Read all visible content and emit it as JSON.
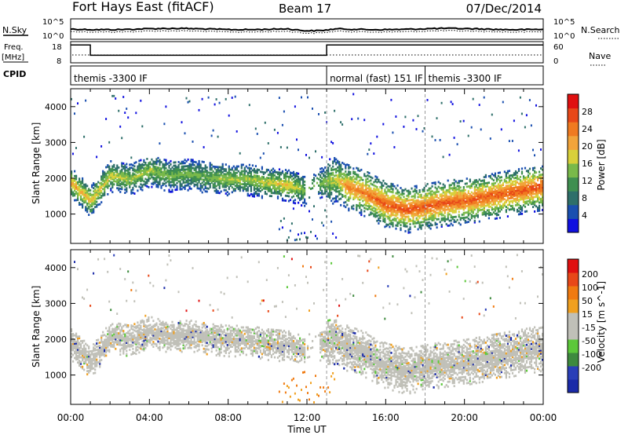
{
  "header": {
    "station": "Fort Hays East (fitACF)",
    "beam": "Beam 17",
    "date": "07/Dec/2014"
  },
  "top_panels": {
    "nsky_label": "N.Sky",
    "nsearch_label": "N.Search",
    "freq_label_line1": "Freq.",
    "freq_label_line2": "[MHz]",
    "nave_label": "Nave",
    "cpid_label": "CPID",
    "noise_ticks": [
      "10^5",
      "10^0"
    ],
    "freq_ticks": [
      "18",
      "8"
    ],
    "nave_ticks": [
      "60",
      "0"
    ],
    "cpid_segments": [
      {
        "start_hour": 0,
        "end_hour": 13,
        "label": "themis -3300 IF"
      },
      {
        "start_hour": 13,
        "end_hour": 18,
        "label": "normal (fast) 151 IF"
      },
      {
        "start_hour": 18,
        "end_hour": 24,
        "label": "themis -3300 IF"
      }
    ],
    "freq_steps": [
      {
        "start_hour": 0,
        "end_hour": 1,
        "value_mhz": 17.5
      },
      {
        "start_hour": 1,
        "end_hour": 13,
        "value_mhz": 12
      },
      {
        "start_hour": 13,
        "end_hour": 24,
        "value_mhz": 17.5
      }
    ]
  },
  "x_axis": {
    "label": "Time UT",
    "ticks": [
      "00:00",
      "04:00",
      "08:00",
      "12:00",
      "16:00",
      "20:00",
      "00:00"
    ]
  },
  "colors": {
    "power_scale": [
      "#1010e0",
      "#1a4fb0",
      "#2e6f6a",
      "#3f8f50",
      "#79b94a",
      "#d8d03a",
      "#f2a43a",
      "#f07a20",
      "#e84818",
      "#e01010"
    ],
    "velocity_scale": [
      "#1a2aa8",
      "#2a3fb8",
      "#3e8a3e",
      "#5cc83a",
      "#c0c0b8",
      "#c0c0b8",
      "#f0a020",
      "#f07a10",
      "#e84818",
      "#e01010"
    ]
  },
  "chart_data": [
    {
      "type": "heatmap",
      "name": "power",
      "ylabel": "Slant Range [km]",
      "xlabel": "Time UT",
      "ylim": [
        180,
        4500
      ],
      "yticks": [
        1000,
        2000,
        3000,
        4000
      ],
      "xlim_hours": [
        0,
        24
      ],
      "colorbar": {
        "label": "Power [dB]",
        "range": [
          0,
          32
        ],
        "ticks": [
          4,
          8,
          12,
          16,
          20,
          24,
          28
        ]
      },
      "echo_band": {
        "hours": [
          0,
          1,
          2,
          3,
          4,
          5,
          6,
          7,
          8,
          9,
          10,
          11,
          11.8,
          12.7,
          13.5,
          14,
          15,
          16,
          17,
          18,
          19,
          20,
          21,
          22,
          23,
          24
        ],
        "center_range_km": [
          1900,
          1400,
          2100,
          2000,
          2250,
          2100,
          2150,
          2050,
          2000,
          2000,
          1900,
          1850,
          1700,
          1900,
          2000,
          1800,
          1600,
          1300,
          1150,
          1250,
          1350,
          1400,
          1500,
          1600,
          1700,
          1800
        ],
        "peak_power_db": [
          22,
          20,
          18,
          16,
          16,
          14,
          14,
          14,
          16,
          16,
          18,
          20,
          14,
          14,
          18,
          24,
          26,
          28,
          28,
          28,
          28,
          28,
          28,
          28,
          28,
          28
        ]
      }
    },
    {
      "type": "heatmap",
      "name": "velocity",
      "ylabel": "Slant Range [km]",
      "xlabel": "Time UT",
      "ylim": [
        180,
        4500
      ],
      "yticks": [
        1000,
        2000,
        3000,
        4000
      ],
      "xlim_hours": [
        0,
        24
      ],
      "colorbar": {
        "label": "Velocity [m s^-1]",
        "range": [
          -250,
          250
        ],
        "ticks": [
          200,
          100,
          50,
          15,
          -15,
          -50,
          -100,
          -200
        ]
      },
      "dominant_velocity_ms": 0,
      "echo_band_follows": "power"
    }
  ]
}
